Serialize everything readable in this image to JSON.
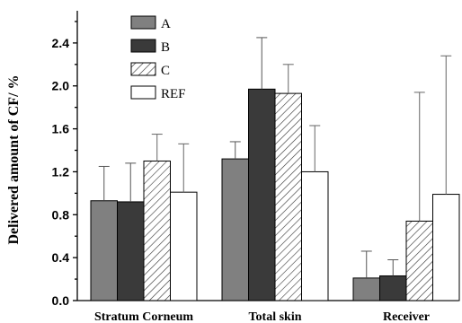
{
  "chart_data": {
    "type": "bar",
    "title": "",
    "xlabel": "",
    "ylabel": "Delivered amount of CF/ %",
    "categories": [
      "Stratum Corneum",
      "Total skin",
      "Receiver"
    ],
    "ylim": [
      0,
      2.7
    ],
    "yticks": [
      0.0,
      0.4,
      0.8,
      1.2,
      1.6,
      2.0,
      2.4
    ],
    "ytick_labels": [
      "0.0",
      "0.4",
      "0.8",
      "1.2",
      "1.6",
      "2.0",
      "2.4"
    ],
    "grid": false,
    "legend_position": "top-left",
    "series": [
      {
        "name": "A",
        "values": [
          0.93,
          1.32,
          0.21
        ],
        "errors": [
          0.32,
          0.16,
          0.25
        ],
        "fill": "#808080",
        "pattern": "solid"
      },
      {
        "name": "B",
        "values": [
          0.92,
          1.97,
          0.23
        ],
        "errors": [
          0.36,
          0.48,
          0.15
        ],
        "fill": "#3a3a3a",
        "pattern": "solid"
      },
      {
        "name": "C",
        "values": [
          1.3,
          1.93,
          0.74
        ],
        "errors": [
          0.25,
          0.27,
          1.2
        ],
        "fill": "#ffffff",
        "pattern": "hatch"
      },
      {
        "name": "REF",
        "values": [
          1.01,
          1.2,
          0.99
        ],
        "errors": [
          0.45,
          0.43,
          1.29
        ],
        "fill": "#ffffff",
        "pattern": "solid"
      }
    ]
  }
}
